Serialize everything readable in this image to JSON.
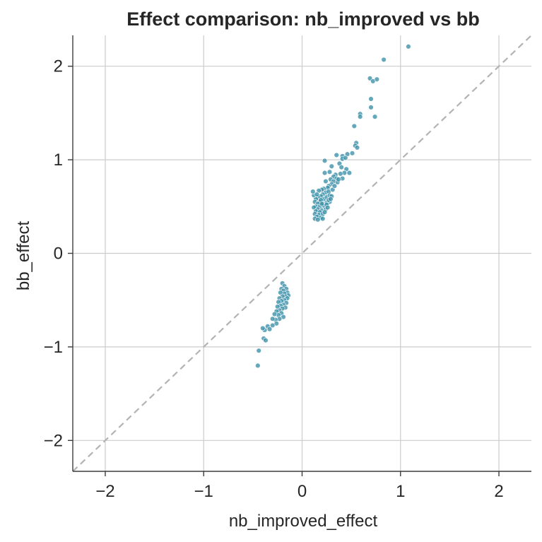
{
  "chart_data": {
    "type": "scatter",
    "title": "Effect comparison: nb_improved vs bb",
    "xlabel": "nb_improved_effect",
    "ylabel": "bb_effect",
    "xlim": [
      -2.33,
      2.33
    ],
    "ylim": [
      -2.33,
      2.33
    ],
    "xticks": [
      -2,
      -1,
      0,
      1,
      2
    ],
    "yticks": [
      -2,
      -1,
      0,
      1,
      2
    ],
    "xtick_labels": [
      "−2",
      "−1",
      "0",
      "1",
      "2"
    ],
    "ytick_labels": [
      "−2",
      "−1",
      "0",
      "1",
      "2"
    ],
    "grid": true,
    "reference_line": {
      "style": "dashed",
      "slope": 1,
      "intercept": 0,
      "color": "#b3b3b3"
    },
    "marker_color": "#3a8fa8",
    "marker_edge": "#ffffff",
    "points": [
      [
        1.08,
        2.21
      ],
      [
        0.83,
        2.07
      ],
      [
        0.69,
        1.87
      ],
      [
        0.72,
        1.84
      ],
      [
        0.76,
        1.86
      ],
      [
        0.7,
        1.65
      ],
      [
        0.7,
        1.56
      ],
      [
        0.74,
        1.46
      ],
      [
        0.59,
        1.49
      ],
      [
        0.59,
        1.46
      ],
      [
        0.53,
        1.36
      ],
      [
        0.55,
        1.18
      ],
      [
        0.54,
        1.15
      ],
      [
        0.56,
        1.13
      ],
      [
        0.51,
        1.07
      ],
      [
        0.46,
        1.06
      ],
      [
        0.41,
        1.04
      ],
      [
        0.41,
        1.01
      ],
      [
        0.35,
        1.05
      ],
      [
        0.44,
        1.02
      ],
      [
        0.23,
        0.99
      ],
      [
        0.3,
        0.93
      ],
      [
        0.38,
        0.96
      ],
      [
        0.4,
        0.92
      ],
      [
        0.45,
        0.9
      ],
      [
        0.48,
        0.86
      ],
      [
        0.43,
        0.86
      ],
      [
        0.39,
        0.85
      ],
      [
        0.34,
        0.84
      ],
      [
        0.32,
        0.82
      ],
      [
        0.35,
        0.8
      ],
      [
        0.41,
        0.8
      ],
      [
        0.28,
        0.87
      ],
      [
        0.23,
        0.86
      ],
      [
        0.29,
        0.79
      ],
      [
        0.32,
        0.77
      ],
      [
        0.36,
        0.76
      ],
      [
        0.3,
        0.74
      ],
      [
        0.27,
        0.72
      ],
      [
        0.24,
        0.77
      ],
      [
        0.26,
        0.7
      ],
      [
        0.22,
        0.69
      ],
      [
        0.2,
        0.68
      ],
      [
        0.17,
        0.67
      ],
      [
        0.24,
        0.65
      ],
      [
        0.27,
        0.66
      ],
      [
        0.21,
        0.63
      ],
      [
        0.19,
        0.61
      ],
      [
        0.16,
        0.6
      ],
      [
        0.14,
        0.58
      ],
      [
        0.22,
        0.58
      ],
      [
        0.25,
        0.6
      ],
      [
        0.28,
        0.62
      ],
      [
        0.3,
        0.61
      ],
      [
        0.18,
        0.55
      ],
      [
        0.13,
        0.55
      ],
      [
        0.16,
        0.53
      ],
      [
        0.21,
        0.53
      ],
      [
        0.25,
        0.54
      ],
      [
        0.28,
        0.55
      ],
      [
        0.27,
        0.57
      ],
      [
        0.14,
        0.5
      ],
      [
        0.12,
        0.49
      ],
      [
        0.18,
        0.5
      ],
      [
        0.22,
        0.51
      ],
      [
        0.25,
        0.52
      ],
      [
        0.16,
        0.47
      ],
      [
        0.2,
        0.46
      ],
      [
        0.14,
        0.45
      ],
      [
        0.18,
        0.44
      ],
      [
        0.13,
        0.42
      ],
      [
        0.17,
        0.41
      ],
      [
        0.21,
        0.42
      ],
      [
        0.15,
        0.39
      ],
      [
        0.19,
        0.38
      ],
      [
        0.13,
        0.37
      ],
      [
        0.16,
        0.36
      ],
      [
        0.21,
        0.37
      ],
      [
        0.12,
        0.62
      ],
      [
        0.11,
        0.66
      ],
      [
        0.24,
        0.47
      ],
      [
        0.23,
        0.44
      ],
      [
        0.26,
        0.49
      ],
      [
        0.29,
        0.58
      ],
      [
        0.31,
        0.68
      ],
      [
        0.33,
        0.72
      ],
      [
        0.37,
        0.79
      ],
      [
        0.19,
        0.57
      ],
      [
        0.2,
        0.53
      ],
      [
        0.15,
        0.63
      ],
      [
        -0.2,
        -0.32
      ],
      [
        -0.18,
        -0.35
      ],
      [
        -0.21,
        -0.38
      ],
      [
        -0.16,
        -0.38
      ],
      [
        -0.19,
        -0.4
      ],
      [
        -0.15,
        -0.42
      ],
      [
        -0.18,
        -0.43
      ],
      [
        -0.22,
        -0.42
      ],
      [
        -0.14,
        -0.45
      ],
      [
        -0.17,
        -0.46
      ],
      [
        -0.2,
        -0.46
      ],
      [
        -0.23,
        -0.48
      ],
      [
        -0.15,
        -0.48
      ],
      [
        -0.18,
        -0.5
      ],
      [
        -0.21,
        -0.51
      ],
      [
        -0.24,
        -0.52
      ],
      [
        -0.16,
        -0.53
      ],
      [
        -0.19,
        -0.55
      ],
      [
        -0.22,
        -0.56
      ],
      [
        -0.25,
        -0.57
      ],
      [
        -0.17,
        -0.58
      ],
      [
        -0.2,
        -0.59
      ],
      [
        -0.23,
        -0.61
      ],
      [
        -0.26,
        -0.62
      ],
      [
        -0.21,
        -0.64
      ],
      [
        -0.24,
        -0.66
      ],
      [
        -0.28,
        -0.65
      ],
      [
        -0.19,
        -0.68
      ],
      [
        -0.23,
        -0.7
      ],
      [
        -0.27,
        -0.71
      ],
      [
        -0.3,
        -0.7
      ],
      [
        -0.26,
        -0.75
      ],
      [
        -0.3,
        -0.77
      ],
      [
        -0.35,
        -0.78
      ],
      [
        -0.33,
        -0.81
      ],
      [
        -0.38,
        -0.82
      ],
      [
        -0.4,
        -0.8
      ],
      [
        -0.39,
        -0.91
      ],
      [
        -0.37,
        -0.93
      ],
      [
        -0.44,
        -1.04
      ],
      [
        -0.45,
        -1.2
      ]
    ]
  }
}
